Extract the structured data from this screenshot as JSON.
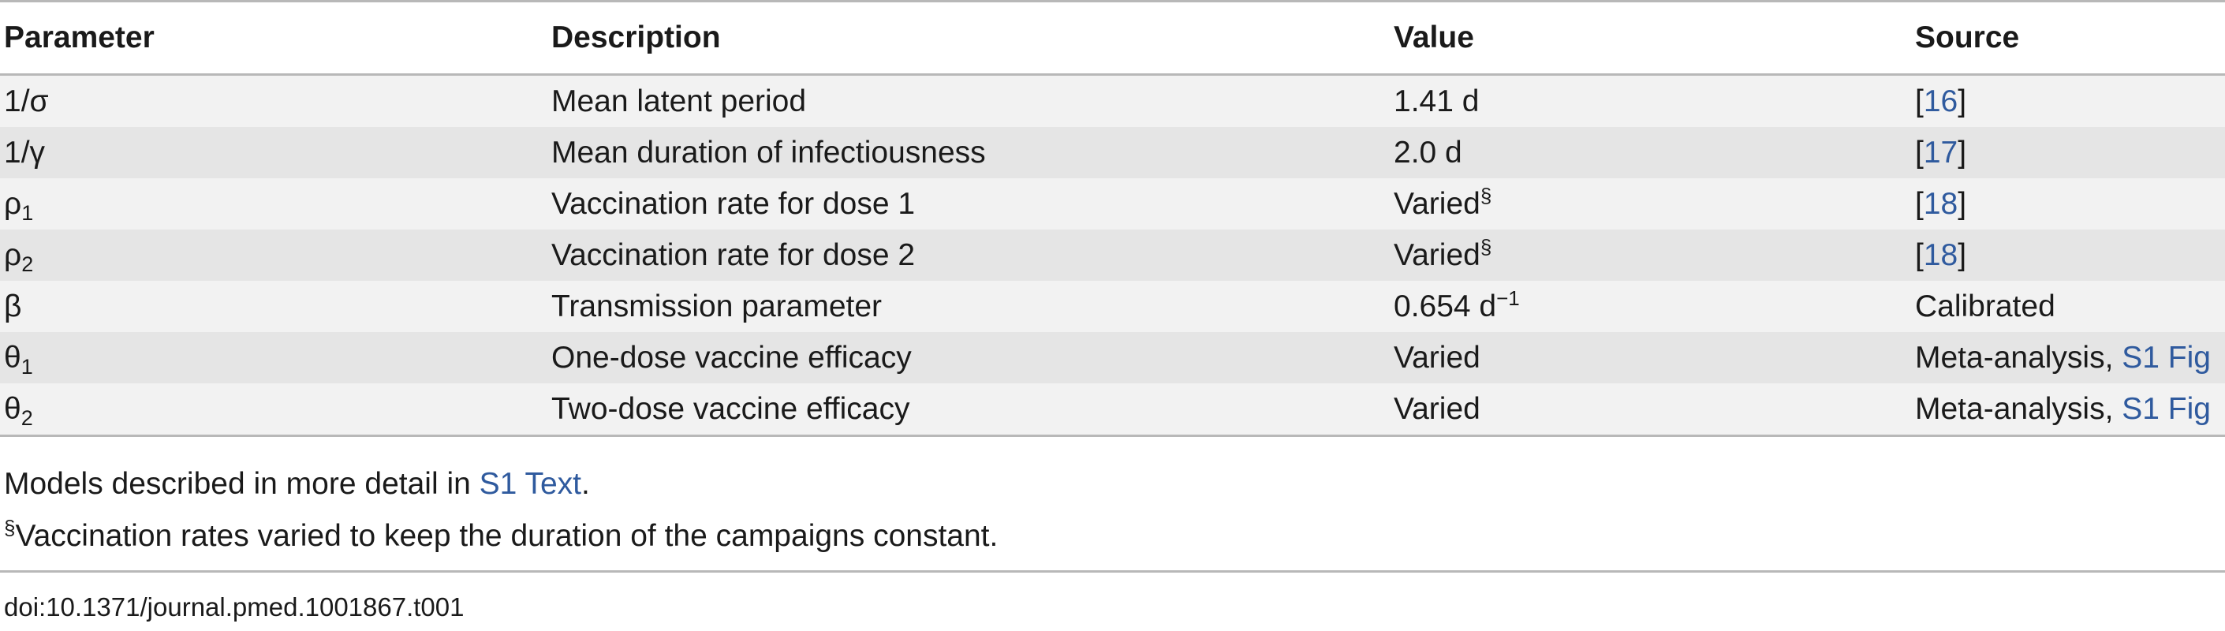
{
  "table": {
    "headers": [
      "Parameter",
      "Description",
      "Value",
      "Source"
    ],
    "rows": [
      {
        "parameter": "1/σ",
        "parameter_sub": "",
        "description": "Mean latent period",
        "value": "1.41 d",
        "value_sup": "",
        "source_pre": "[",
        "source_link": "16",
        "source_post": "]"
      },
      {
        "parameter": "1/γ",
        "parameter_sub": "",
        "description": "Mean duration of infectiousness",
        "value": "2.0 d",
        "value_sup": "",
        "source_pre": "[",
        "source_link": "17",
        "source_post": "]"
      },
      {
        "parameter": "ρ",
        "parameter_sub": "1",
        "description": "Vaccination rate for dose 1",
        "value": "Varied",
        "value_sup": "§",
        "source_pre": "[",
        "source_link": "18",
        "source_post": "]"
      },
      {
        "parameter": "ρ",
        "parameter_sub": "2",
        "description": "Vaccination rate for dose 2",
        "value": "Varied",
        "value_sup": "§",
        "source_pre": "[",
        "source_link": "18",
        "source_post": "]"
      },
      {
        "parameter": "β",
        "parameter_sub": "",
        "description": "Transmission parameter",
        "value": "0.654 d",
        "value_sup": "−1",
        "source_pre": "Calibrated",
        "source_link": "",
        "source_post": ""
      },
      {
        "parameter": "θ",
        "parameter_sub": "1",
        "description": "One-dose vaccine efficacy",
        "value": "Varied",
        "value_sup": "",
        "source_pre": "Meta-analysis, ",
        "source_link": "S1 Fig",
        "source_post": ""
      },
      {
        "parameter": "θ",
        "parameter_sub": "2",
        "description": "Two-dose vaccine efficacy",
        "value": "Varied",
        "value_sup": "",
        "source_pre": "Meta-analysis, ",
        "source_link": "S1 Fig",
        "source_post": ""
      }
    ]
  },
  "notes": {
    "models_text": "Models described in more detail in ",
    "models_link": "S1 Text",
    "models_end": ".",
    "footnote_mark": "§",
    "footnote_text": "Vaccination rates varied to keep the duration of the campaigns constant."
  },
  "doi": "doi:10.1371/journal.pmed.1001867.t001",
  "colors": {
    "link": "#2f5a9e",
    "row_light": "#f2f2f2",
    "row_dark": "#e5e5e5",
    "rule": "#b8b8b8"
  }
}
